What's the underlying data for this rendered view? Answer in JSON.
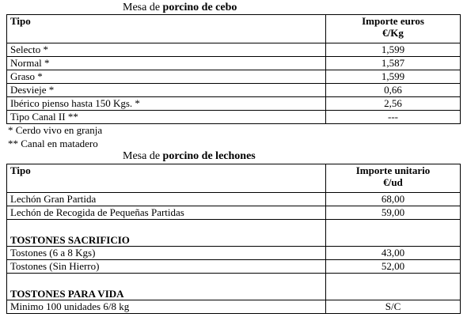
{
  "cebo": {
    "caption_prefix": "Mesa de ",
    "caption_bold": "porcino de cebo",
    "header": {
      "tipo": "Tipo",
      "importe_line1": "Importe euros",
      "importe_line2": "€/Kg"
    },
    "rows": [
      {
        "tipo": "Selecto *",
        "valor": "1,599"
      },
      {
        "tipo": "Normal *",
        "valor": "1,587"
      },
      {
        "tipo": "Graso *",
        "valor": "1,599"
      },
      {
        "tipo": "Desvieje *",
        "valor": "0,66"
      },
      {
        "tipo": "Ibérico pienso hasta 150 Kgs. *",
        "valor": "2,56"
      },
      {
        "tipo": "Tipo Canal II **",
        "valor": "---"
      }
    ],
    "notes": [
      "* Cerdo vivo en granja",
      "** Canal en matadero"
    ]
  },
  "lechones": {
    "caption_prefix": "Mesa de ",
    "caption_bold": "porcino de lechones",
    "header": {
      "tipo": "Tipo",
      "importe_line1": "Importe unitario",
      "importe_line2": "€/ud"
    },
    "rows": [
      {
        "tipo": "Lechón Gran Partida",
        "valor": "68,00"
      },
      {
        "tipo": "Lechón de Recogida de Pequeñas Partidas",
        "valor": "59,00"
      }
    ],
    "section_tostones_sacrificio": "TOSTONES SACRIFICIO",
    "tostones_sacrificio_rows": [
      {
        "tipo": "Tostones (6 a 8 Kgs)",
        "valor": "43,00"
      },
      {
        "tipo": "Tostones  (Sin Hierro)",
        "valor": "52,00"
      }
    ],
    "section_tostones_vida": "TOSTONES PARA VIDA",
    "tostones_vida_rows": [
      {
        "tipo": "Minimo 100 unidades 6/8 kg",
        "valor": "S/C"
      }
    ]
  }
}
